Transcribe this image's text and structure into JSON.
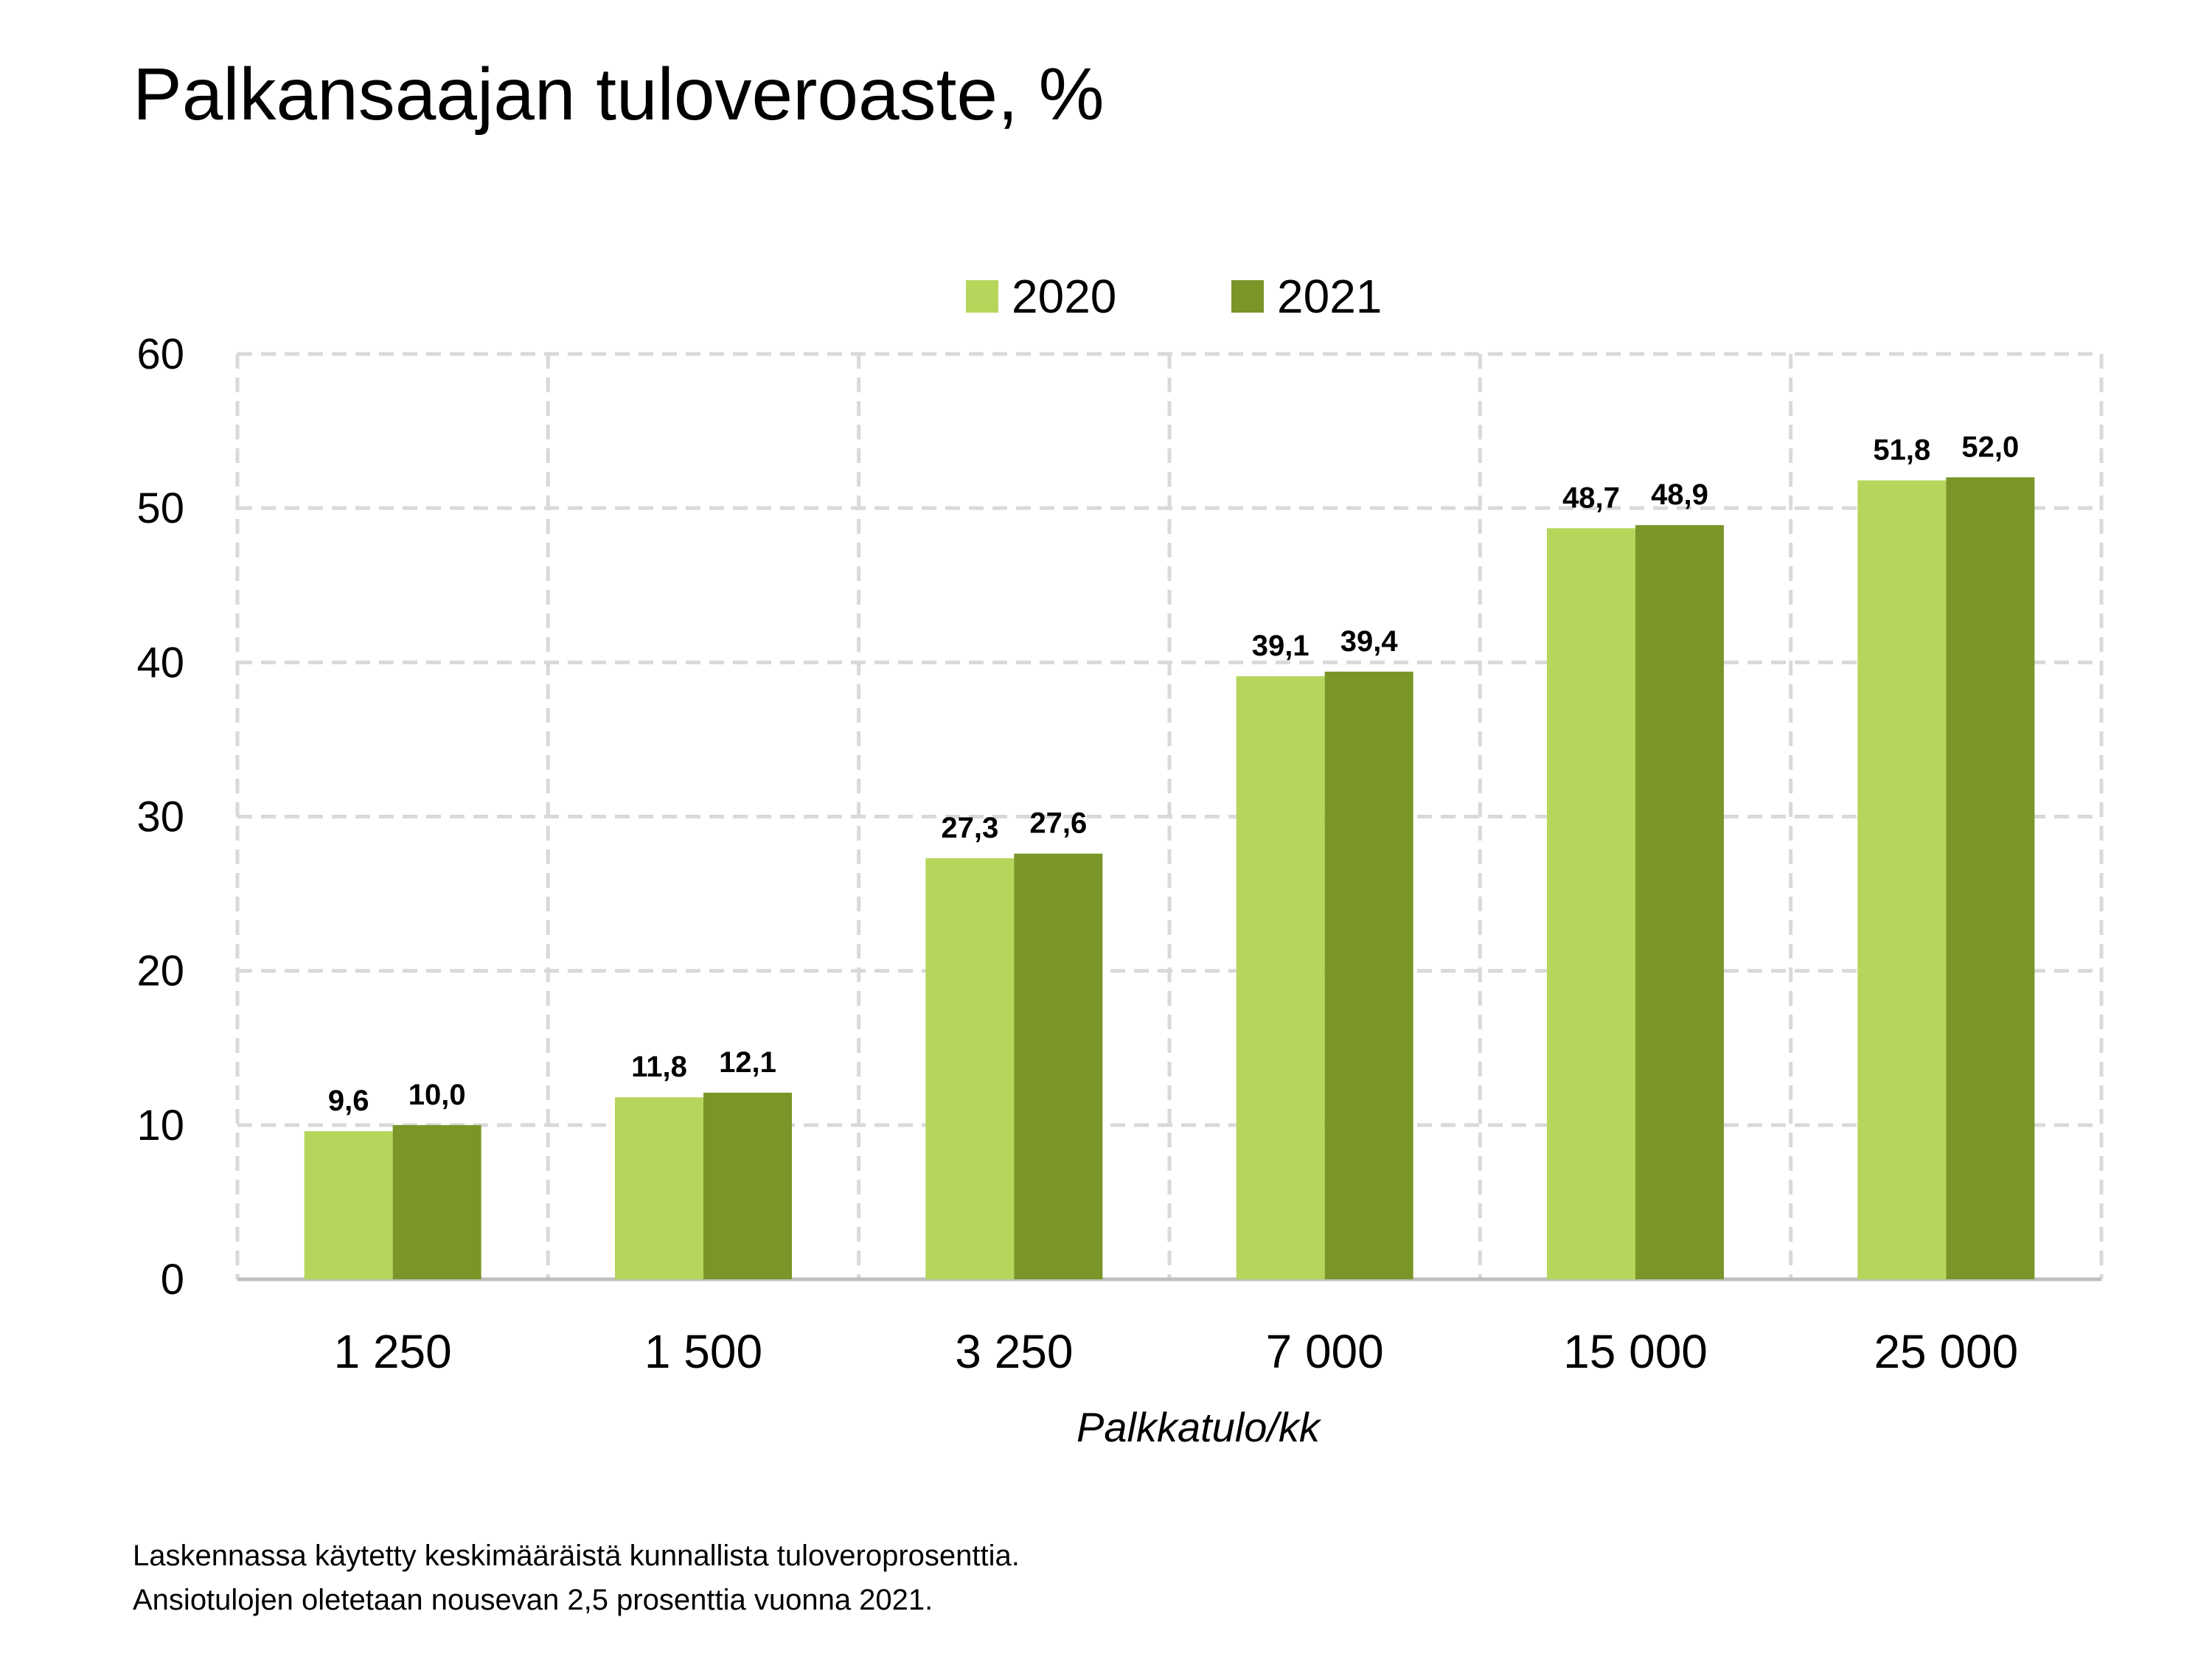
{
  "chart_data": {
    "type": "bar",
    "title": "Palkansaajan tuloveroaste, %",
    "xlabel": "Palkkatulo/kk",
    "ylabel": "",
    "ylim": [
      0,
      60
    ],
    "yticks": [
      0,
      10,
      20,
      30,
      40,
      50,
      60
    ],
    "categories": [
      "1 250",
      "1 500",
      "3 250",
      "7 000",
      "15 000",
      "25 000"
    ],
    "series": [
      {
        "name": "2020",
        "values": [
          9.6,
          11.8,
          27.3,
          39.1,
          48.7,
          51.8
        ],
        "labels": [
          "9,6",
          "11,8",
          "27,3",
          "39,1",
          "48,7",
          "51,8"
        ],
        "color": "#b5d65a"
      },
      {
        "name": "2021",
        "values": [
          10.0,
          12.1,
          27.6,
          39.4,
          48.9,
          52.0
        ],
        "labels": [
          "10,0",
          "12,1",
          "27,6",
          "39,4",
          "48,9",
          "52,0"
        ],
        "color": "#7a9628"
      }
    ],
    "grid": true,
    "grid_style": "dashed",
    "legend_position": "top-center"
  },
  "footnote": {
    "line1": "Laskennassa käytetty keskimääräistä kunnallista tuloveroprosenttia.",
    "line2": "Ansiotulojen oletetaan nousevan 2,5 prosenttia vuonna 2021."
  },
  "colors": {
    "grid": "#d9d9d9",
    "series_2020": "#b5d65a",
    "series_2021": "#7a9628"
  }
}
